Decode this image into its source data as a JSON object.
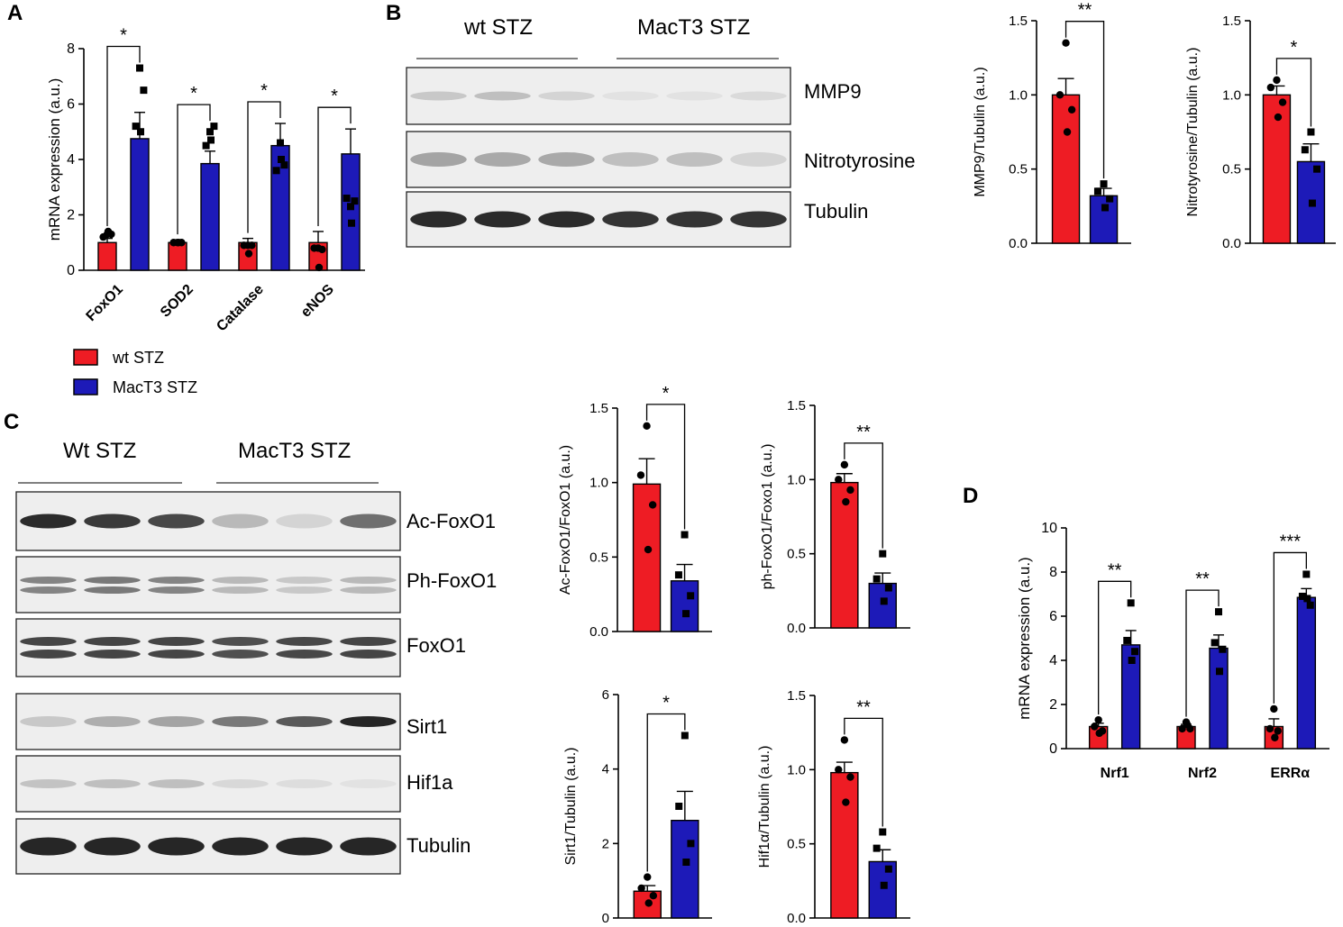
{
  "colors": {
    "wt": "#ee1c24",
    "mact3": "#1d1ab8",
    "band_dark": "#1a1a1a",
    "blot_bg": "#eeeeee"
  },
  "legend": {
    "items": [
      {
        "label": "wt STZ",
        "color": "#ee1c24"
      },
      {
        "label": "MacT3 STZ",
        "color": "#1d1ab8"
      }
    ]
  },
  "panels": {
    "A": {
      "letter": "A"
    },
    "B": {
      "letter": "B",
      "groups": [
        "wt  STZ",
        "MacT3 STZ"
      ],
      "blots": [
        "MMP9",
        "Nitrotyrosine",
        "Tubulin"
      ]
    },
    "C": {
      "letter": "C",
      "groups": [
        "Wt  STZ",
        "MacT3 STZ"
      ],
      "blots": [
        "Ac-FoxO1",
        "Ph-FoxO1",
        "FoxO1",
        "Sirt1",
        "Hif1a",
        "Tubulin"
      ]
    },
    "D": {
      "letter": "D"
    }
  },
  "chart_data": [
    {
      "id": "A",
      "type": "bar",
      "categories": [
        "FoxO1",
        "SOD2",
        "Catalase",
        "eNOS"
      ],
      "ylabel": "mRNA expression (a.u.)",
      "ylim": [
        0,
        8
      ],
      "yticks": [
        "0",
        "2",
        "4",
        "6",
        "8"
      ],
      "series": [
        {
          "name": "wt STZ",
          "values": [
            1.0,
            1.0,
            1.0,
            1.0
          ],
          "errors": [
            0.15,
            0.1,
            0.15,
            0.4
          ],
          "points": [
            [
              1.3,
              1.0,
              0.9,
              0.8
            ],
            [
              1.2,
              1.0,
              0.9,
              0.8
            ],
            [
              1.3,
              1.0,
              0.9,
              0.75
            ],
            [
              1.4,
              1.0,
              0.6,
              0.1
            ]
          ]
        },
        {
          "name": "MacT3 STZ",
          "values": [
            4.75,
            3.85,
            4.5,
            4.2
          ],
          "errors": [
            0.95,
            0.45,
            0.8,
            0.9
          ],
          "points": [
            [
              7.3,
              5.0,
              4.6,
              2.3
            ],
            [
              5.2,
              4.5,
              3.6,
              2.6
            ],
            [
              6.5,
              5.2,
              3.8,
              2.5
            ],
            [
              5.0,
              4.7,
              4.0,
              1.7
            ]
          ]
        }
      ],
      "significance": [
        "*",
        "*",
        "*",
        "*"
      ]
    },
    {
      "id": "B-MMP9",
      "type": "bar",
      "categories": [
        "wt STZ",
        "MacT3 STZ"
      ],
      "ylabel": "MMP9/Tubulin (a.u.)",
      "ylim": [
        0,
        1.5
      ],
      "yticks": [
        "0.0",
        "0.5",
        "1.0",
        "1.5"
      ],
      "values": [
        1.0,
        0.32
      ],
      "errors": [
        0.11,
        0.05
      ],
      "points": [
        [
          1.35,
          1.0,
          0.9,
          0.75
        ],
        [
          0.4,
          0.35,
          0.3,
          0.24
        ]
      ],
      "significance": "**"
    },
    {
      "id": "B-Nitrotyrosine",
      "type": "bar",
      "categories": [
        "wt STZ",
        "MacT3 STZ"
      ],
      "ylabel": "Nitrotyrosine/Tubulin (a.u.)",
      "ylim": [
        0,
        1.5
      ],
      "yticks": [
        "0.0",
        "0.5",
        "1.0",
        "1.5"
      ],
      "values": [
        1.0,
        0.55
      ],
      "errors": [
        0.06,
        0.12
      ],
      "points": [
        [
          1.1,
          1.05,
          0.95,
          0.85
        ],
        [
          0.75,
          0.63,
          0.5,
          0.27
        ]
      ],
      "significance": "*"
    },
    {
      "id": "C-AcFoxO1",
      "type": "bar",
      "categories": [
        "wt STZ",
        "MacT3 STZ"
      ],
      "ylabel": "Ac-FoxO1/FoxO1 (a.u.)",
      "ylim": [
        0,
        1.5
      ],
      "yticks": [
        "0.0",
        "0.5",
        "1.0",
        "1.5"
      ],
      "values": [
        0.99,
        0.34
      ],
      "errors": [
        0.17,
        0.11
      ],
      "points": [
        [
          1.38,
          1.05,
          0.85,
          0.55
        ],
        [
          0.65,
          0.38,
          0.24,
          0.12
        ]
      ],
      "significance": "*"
    },
    {
      "id": "C-phFoxO1",
      "type": "bar",
      "categories": [
        "wt STZ",
        "MacT3 STZ"
      ],
      "ylabel": "ph-FoxO1/Foxo1 (a.u.)",
      "ylim": [
        0,
        1.5
      ],
      "yticks": [
        "0.0",
        "0.5",
        "1.0",
        "1.5"
      ],
      "values": [
        0.98,
        0.3
      ],
      "errors": [
        0.06,
        0.07
      ],
      "points": [
        [
          1.1,
          1.0,
          0.93,
          0.85
        ],
        [
          0.5,
          0.33,
          0.27,
          0.18
        ]
      ],
      "significance": "**"
    },
    {
      "id": "C-Sirt1",
      "type": "bar",
      "categories": [
        "wt STZ",
        "MacT3 STZ"
      ],
      "ylabel": "Sirt1/Tubulin (a.u.)",
      "ylim": [
        0,
        6
      ],
      "yticks": [
        "0",
        "2",
        "4",
        "6"
      ],
      "values": [
        0.72,
        2.62
      ],
      "errors": [
        0.15,
        0.78
      ],
      "points": [
        [
          1.1,
          0.8,
          0.6,
          0.4
        ],
        [
          4.9,
          3.0,
          2.0,
          1.5
        ]
      ],
      "significance": "*"
    },
    {
      "id": "C-Hif1a",
      "type": "bar",
      "categories": [
        "wt STZ",
        "MacT3 STZ"
      ],
      "ylabel": "Hif1α/Tubulin (a.u.)",
      "ylim": [
        0,
        1.5
      ],
      "yticks": [
        "0.0",
        "0.5",
        "1.0",
        "1.5"
      ],
      "values": [
        0.98,
        0.38
      ],
      "errors": [
        0.07,
        0.08
      ],
      "points": [
        [
          1.2,
          1.0,
          0.95,
          0.78
        ],
        [
          0.58,
          0.47,
          0.33,
          0.22
        ]
      ],
      "significance": "**"
    },
    {
      "id": "D",
      "type": "bar",
      "categories": [
        "Nrf1",
        "Nrf2",
        "ERRα"
      ],
      "ylabel": "mRNA expression (a.u.)",
      "ylim": [
        0,
        10
      ],
      "yticks": [
        "0",
        "2",
        "4",
        "6",
        "8",
        "10"
      ],
      "series": [
        {
          "name": "wt STZ",
          "values": [
            1.0,
            1.0,
            1.0
          ],
          "errors": [
            0.15,
            0.1,
            0.35
          ],
          "points": [
            [
              1.3,
              1.2,
              1.8
            ],
            [
              1.0,
              0.9,
              0.9
            ],
            [
              0.8,
              0.9,
              0.8
            ],
            [
              0.7,
              1.1,
              0.5
            ]
          ]
        },
        {
          "name": "MacT3 STZ",
          "values": [
            4.7,
            4.55,
            6.85
          ],
          "errors": [
            0.65,
            0.6,
            0.4
          ],
          "points": [
            [
              6.6,
              6.2,
              7.9
            ],
            [
              4.9,
              4.8,
              6.9
            ],
            [
              4.4,
              4.5,
              6.5
            ],
            [
              4.0,
              3.5,
              6.8
            ]
          ]
        }
      ],
      "significance": [
        "**",
        "**",
        "***"
      ]
    }
  ]
}
